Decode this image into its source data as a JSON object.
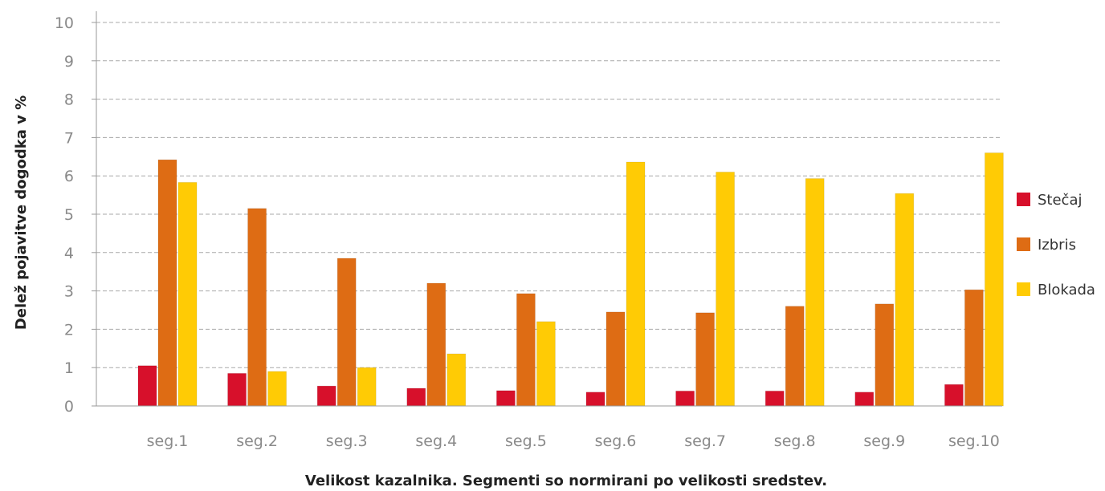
{
  "chart_data": {
    "type": "bar",
    "title": "",
    "xlabel": "Velikost kazalnika. Segmenti so normirani po velikosti sredstev.",
    "ylabel": "Delež pojavitve dogodka v %",
    "ylim": [
      0,
      10
    ],
    "yticks": [
      "0",
      "1",
      "2",
      "3",
      "4",
      "5",
      "6",
      "7",
      "8",
      "9",
      "10"
    ],
    "grid": true,
    "legend_position": "right",
    "categories": [
      "seg.1",
      "seg.2",
      "seg.3",
      "seg.4",
      "seg.5",
      "seg.6",
      "seg.7",
      "seg.8",
      "seg.9",
      "seg.10"
    ],
    "series": [
      {
        "name": "Stečaj",
        "color": "#d7102b",
        "values": [
          1.05,
          0.85,
          0.52,
          0.46,
          0.4,
          0.36,
          0.39,
          0.39,
          0.36,
          0.56
        ]
      },
      {
        "name": "Izbris",
        "color": "#de6c14",
        "values": [
          6.42,
          5.15,
          3.85,
          3.2,
          2.93,
          2.45,
          2.43,
          2.6,
          2.66,
          3.03
        ]
      },
      {
        "name": "Blokada",
        "color": "#ffcb05",
        "values": [
          5.83,
          0.9,
          1.0,
          1.36,
          2.2,
          6.36,
          6.1,
          5.93,
          5.54,
          6.6
        ]
      }
    ]
  }
}
